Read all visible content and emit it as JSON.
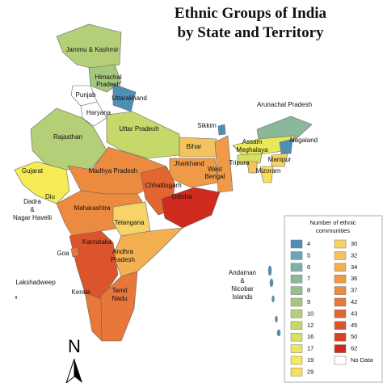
{
  "title": {
    "line1": "Ethnic Groups of India",
    "line2": "by State and Territory"
  },
  "labels": {
    "jammu_kashmir": "Jammu & Kashmir",
    "himachal": [
      "Himachal",
      "Pradesh"
    ],
    "punjab": "Punjab",
    "uttarakhand": "Uttarakhand",
    "haryana": "Haryana",
    "rajasthan": "Rajasthan",
    "uttar_pradesh": "Uttar Pradesh",
    "sikkim": "Sikkim",
    "arunachal": "Arunachal Pradesh",
    "assam": "Assam",
    "nagaland": "Nagaland",
    "meghalaya": "Meghalaya",
    "manipur": "Manipur",
    "bihar": "Bihar",
    "tripura": "Tripura",
    "mizoram": "Mizoram",
    "gujarat": "Gujarat",
    "madhya_pradesh": "Madhya Pradesh",
    "jharkhand": "Jharkhand",
    "west_bengal": [
      "West",
      "Bengal"
    ],
    "chhattisgarh": "Chhattisgarh",
    "diu": "Diu",
    "dadra": [
      "Dadra",
      "&",
      "Nagar Havelli"
    ],
    "odisha": "Odisha",
    "maharashtra": "Maharashtra",
    "telangana": "Telangana",
    "karnataka": "Karnataka",
    "andhra": [
      "Andhra",
      "Pradesh"
    ],
    "goa": "Goa",
    "lakshadweep": "Lakshadweep",
    "andaman": [
      "Andaman",
      "&",
      "Nicobar",
      "Islands"
    ],
    "kerala": "Kerala",
    "tamil_nadu": [
      "Tamil",
      "Nadu"
    ]
  },
  "north": "N",
  "legend": {
    "title": [
      "Number of ethnic",
      "communities"
    ],
    "items": [
      {
        "value": 4,
        "color": "#4e8fb8"
      },
      {
        "value": 5,
        "color": "#6aa4bf"
      },
      {
        "value": 6,
        "color": "#7fb0a8"
      },
      {
        "value": 7,
        "color": "#8cb89a"
      },
      {
        "value": 8,
        "color": "#97c08c"
      },
      {
        "value": 9,
        "color": "#a6c77e"
      },
      {
        "value": 10,
        "color": "#b5cf78"
      },
      {
        "value": 12,
        "color": "#c6d86a"
      },
      {
        "value": 16,
        "color": "#d7e060"
      },
      {
        "value": 17,
        "color": "#e8e85a"
      },
      {
        "value": 19,
        "color": "#f5ec55"
      },
      {
        "value": 29,
        "color": "#f8e05a"
      },
      {
        "value": 30,
        "color": "#f7d468"
      },
      {
        "value": 32,
        "color": "#f4c35e"
      },
      {
        "value": 34,
        "color": "#f2b050"
      },
      {
        "value": 36,
        "color": "#f09a48"
      },
      {
        "value": 37,
        "color": "#ec8a40"
      },
      {
        "value": 42,
        "color": "#e8773a"
      },
      {
        "value": 43,
        "color": "#e26532"
      },
      {
        "value": 45,
        "color": "#dc542c"
      },
      {
        "value": 50,
        "color": "#d64426"
      },
      {
        "value": 62,
        "color": "#d02a1e"
      }
    ],
    "no_data": {
      "label": "No Data",
      "color": "#ffffff"
    }
  }
}
